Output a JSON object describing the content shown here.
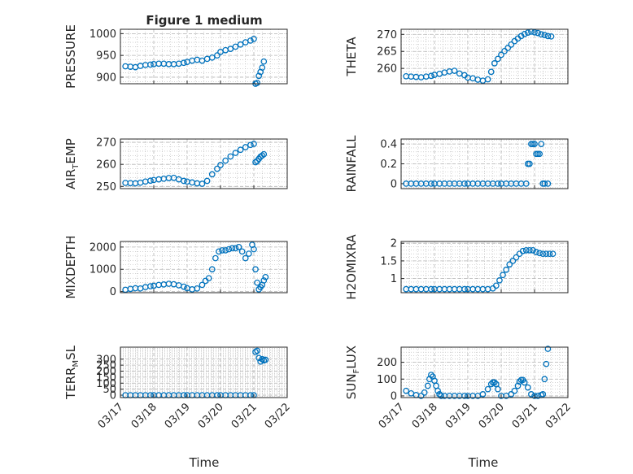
{
  "figure": {
    "title": "Figure 1 medium"
  },
  "colors": {
    "marker": "#0072BD",
    "axis": "#262626",
    "grid": "#b4b4b4"
  },
  "chart_data": [
    {
      "id": "pressure",
      "type": "scatter",
      "ylabel": "PRESSURE",
      "ylabel_sub": "",
      "ylabel_tail": "",
      "ylim": [
        885,
        1010
      ],
      "yticks": [
        900,
        950,
        1000
      ],
      "xlim": [
        "03/17",
        "03/22"
      ],
      "xticks": [
        "03/17",
        "03/18",
        "03/19",
        "03/20",
        "03/21",
        "03/22"
      ],
      "x_days": [
        0.15,
        0.3,
        0.45,
        0.6,
        0.75,
        0.9,
        1.0,
        1.15,
        1.3,
        1.45,
        1.6,
        1.75,
        1.9,
        2.0,
        2.15,
        2.3,
        2.45,
        2.6,
        2.75,
        2.9,
        3.0,
        3.15,
        3.3,
        3.45,
        3.6,
        3.75,
        3.9,
        4.0,
        4.05,
        4.1,
        4.15,
        4.2,
        4.25,
        4.3
      ],
      "y": [
        925,
        924,
        923,
        926,
        928,
        929,
        930,
        931,
        931,
        930,
        930,
        931,
        933,
        935,
        938,
        940,
        938,
        942,
        945,
        950,
        958,
        962,
        965,
        970,
        975,
        980,
        984,
        988,
        885,
        887,
        903,
        912,
        922,
        936
      ]
    },
    {
      "id": "theta",
      "type": "scatter",
      "ylabel": "THETA",
      "ylabel_sub": "",
      "ylabel_tail": "",
      "ylim": [
        255.5,
        271.5
      ],
      "yticks": [
        260,
        265,
        270
      ],
      "xlim": [
        "03/17",
        "03/22"
      ],
      "xticks": [
        "03/17",
        "03/18",
        "03/19",
        "03/20",
        "03/21",
        "03/22"
      ],
      "x_days": [
        0.15,
        0.3,
        0.45,
        0.6,
        0.75,
        0.9,
        1.0,
        1.15,
        1.3,
        1.45,
        1.6,
        1.75,
        1.9,
        2.0,
        2.15,
        2.3,
        2.45,
        2.6,
        2.7,
        2.8,
        2.9,
        3.0,
        3.1,
        3.2,
        3.3,
        3.4,
        3.5,
        3.6,
        3.7,
        3.8,
        3.9,
        4.0,
        4.1,
        4.2,
        4.3,
        4.4,
        4.5
      ],
      "y": [
        257.7,
        257.6,
        257.5,
        257.4,
        257.6,
        257.8,
        258.1,
        258.4,
        258.8,
        259.1,
        259.3,
        258.5,
        258.0,
        257.3,
        257.1,
        256.7,
        256.4,
        256.8,
        259.0,
        261.5,
        262.8,
        264.0,
        265.1,
        266.0,
        267.0,
        268.0,
        268.8,
        269.5,
        270.1,
        270.5,
        270.8,
        270.6,
        270.4,
        270.0,
        269.8,
        269.5,
        269.4
      ]
    },
    {
      "id": "airtemp",
      "type": "scatter",
      "ylabel": "AIR",
      "ylabel_sub": "T",
      "ylabel_tail": "EMP",
      "ylim": [
        249,
        271.5
      ],
      "yticks": [
        250,
        260,
        270
      ],
      "xlim": [
        "03/17",
        "03/22"
      ],
      "xticks": [
        "03/17",
        "03/18",
        "03/19",
        "03/20",
        "03/21",
        "03/22"
      ],
      "x_days": [
        0.15,
        0.3,
        0.45,
        0.6,
        0.75,
        0.9,
        1.0,
        1.15,
        1.3,
        1.45,
        1.6,
        1.75,
        1.9,
        2.0,
        2.15,
        2.3,
        2.45,
        2.6,
        2.75,
        2.9,
        3.0,
        3.15,
        3.3,
        3.45,
        3.6,
        3.75,
        3.9,
        4.0,
        4.05,
        4.1,
        4.15,
        4.2,
        4.25,
        4.3
      ],
      "y": [
        251.6,
        251.5,
        251.4,
        251.7,
        252.2,
        252.6,
        252.9,
        253.2,
        253.5,
        253.8,
        253.9,
        253.2,
        252.5,
        252.2,
        251.8,
        251.4,
        251.2,
        252.5,
        255.5,
        258.0,
        259.7,
        261.7,
        263.6,
        265.2,
        266.6,
        267.8,
        268.8,
        269.3,
        261.0,
        261.5,
        262.5,
        263.5,
        264.0,
        264.6
      ]
    },
    {
      "id": "rainfall",
      "type": "scatter",
      "ylabel": "RAINFALL",
      "ylabel_sub": "",
      "ylabel_tail": "",
      "ylim": [
        -0.05,
        0.45
      ],
      "yticks": [
        0,
        0.2,
        0.4
      ],
      "xlim": [
        "03/17",
        "03/22"
      ],
      "xticks": [
        "03/17",
        "03/18",
        "03/19",
        "03/20",
        "03/21",
        "03/22"
      ],
      "x_days": [
        0.15,
        0.3,
        0.45,
        0.6,
        0.75,
        0.9,
        1.0,
        1.15,
        1.3,
        1.45,
        1.6,
        1.75,
        1.9,
        2.0,
        2.15,
        2.3,
        2.45,
        2.6,
        2.75,
        2.9,
        3.0,
        3.15,
        3.3,
        3.45,
        3.6,
        3.75,
        3.8,
        3.85,
        3.9,
        3.95,
        4.0,
        4.05,
        4.1,
        4.15,
        4.2,
        4.25,
        4.3,
        4.4
      ],
      "y": [
        0,
        0,
        0,
        0,
        0,
        0,
        0,
        0,
        0,
        0,
        0,
        0,
        0,
        0,
        0,
        0,
        0,
        0,
        0,
        0,
        0,
        0,
        0,
        0,
        0,
        0,
        0.2,
        0.2,
        0.4,
        0.4,
        0.4,
        0.3,
        0.3,
        0.3,
        0.4,
        0,
        0,
        0
      ]
    },
    {
      "id": "mixdepth",
      "type": "scatter",
      "ylabel": "MIXDEPTH",
      "ylabel_sub": "",
      "ylabel_tail": "",
      "ylim": [
        -50,
        2250
      ],
      "yticks": [
        0,
        1000,
        2000
      ],
      "xlim": [
        "03/17",
        "03/22"
      ],
      "xticks": [
        "03/17",
        "03/18",
        "03/19",
        "03/20",
        "03/21",
        "03/22"
      ],
      "x_days": [
        0.15,
        0.3,
        0.45,
        0.6,
        0.75,
        0.9,
        1.0,
        1.15,
        1.3,
        1.45,
        1.6,
        1.75,
        1.9,
        2.0,
        2.15,
        2.3,
        2.45,
        2.55,
        2.65,
        2.75,
        2.85,
        2.95,
        3.05,
        3.15,
        3.25,
        3.35,
        3.45,
        3.55,
        3.65,
        3.75,
        3.85,
        3.95,
        4.0,
        4.05,
        4.1,
        4.15,
        4.2,
        4.25,
        4.3,
        4.35
      ],
      "y": [
        80,
        120,
        150,
        140,
        200,
        240,
        260,
        300,
        320,
        350,
        330,
        280,
        220,
        150,
        100,
        140,
        300,
        480,
        600,
        1000,
        1500,
        1800,
        1850,
        1850,
        1900,
        1950,
        1950,
        2000,
        1800,
        1500,
        1700,
        2100,
        1900,
        1000,
        400,
        100,
        200,
        300,
        500,
        650
      ]
    },
    {
      "id": "h2omixra",
      "type": "scatter",
      "ylabel": "H2OMIXRA",
      "ylabel_sub": "",
      "ylabel_tail": "",
      "ylim": [
        0.6,
        2.05
      ],
      "yticks": [
        1,
        1.5,
        2
      ],
      "xlim": [
        "03/17",
        "03/22"
      ],
      "xticks": [
        "03/17",
        "03/18",
        "03/19",
        "03/20",
        "03/21",
        "03/22"
      ],
      "x_days": [
        0.15,
        0.3,
        0.45,
        0.6,
        0.75,
        0.9,
        1.0,
        1.15,
        1.3,
        1.45,
        1.6,
        1.75,
        1.9,
        2.0,
        2.15,
        2.3,
        2.45,
        2.6,
        2.75,
        2.85,
        2.95,
        3.05,
        3.15,
        3.25,
        3.35,
        3.45,
        3.55,
        3.65,
        3.75,
        3.85,
        3.95,
        4.05,
        4.15,
        4.25,
        4.35,
        4.45,
        4.55
      ],
      "y": [
        0.7,
        0.7,
        0.7,
        0.7,
        0.7,
        0.7,
        0.7,
        0.7,
        0.7,
        0.7,
        0.7,
        0.7,
        0.7,
        0.7,
        0.7,
        0.7,
        0.7,
        0.7,
        0.72,
        0.8,
        0.95,
        1.1,
        1.25,
        1.4,
        1.5,
        1.6,
        1.7,
        1.78,
        1.8,
        1.8,
        1.8,
        1.75,
        1.72,
        1.7,
        1.7,
        1.7,
        1.7
      ]
    },
    {
      "id": "terrmsl",
      "type": "scatter",
      "ylabel": "TERR",
      "ylabel_sub": "M",
      "ylabel_tail": "SL",
      "ylim": [
        -20,
        400
      ],
      "yticks": [
        0,
        50,
        100,
        150,
        200,
        250,
        300
      ],
      "xlim": [
        "03/17",
        "03/22"
      ],
      "xticks": [
        "03/17",
        "03/18",
        "03/19",
        "03/20",
        "03/21",
        "03/22"
      ],
      "x_days": [
        0.15,
        0.3,
        0.45,
        0.6,
        0.75,
        0.9,
        1.0,
        1.15,
        1.3,
        1.45,
        1.6,
        1.75,
        1.9,
        2.0,
        2.15,
        2.3,
        2.45,
        2.6,
        2.75,
        2.9,
        3.0,
        3.15,
        3.3,
        3.45,
        3.6,
        3.75,
        3.9,
        4.0,
        4.05,
        4.1,
        4.15,
        4.2,
        4.25,
        4.3,
        4.35
      ],
      "y": [
        0,
        0,
        0,
        0,
        0,
        0,
        0,
        0,
        0,
        0,
        0,
        0,
        0,
        0,
        0,
        0,
        0,
        0,
        0,
        0,
        0,
        0,
        0,
        0,
        0,
        0,
        0,
        0,
        360,
        370,
        310,
        280,
        300,
        290,
        295
      ]
    },
    {
      "id": "sunflux",
      "type": "scatter",
      "ylabel": "SUN",
      "ylabel_sub": "F",
      "ylabel_tail": "LUX",
      "ylim": [
        -10,
        290
      ],
      "yticks": [
        0,
        100,
        200
      ],
      "xlim": [
        "03/17",
        "03/22"
      ],
      "xticks": [
        "03/17",
        "03/18",
        "03/19",
        "03/20",
        "03/21",
        "03/22"
      ],
      "x_days": [
        0.15,
        0.3,
        0.45,
        0.6,
        0.7,
        0.8,
        0.85,
        0.9,
        0.95,
        1.0,
        1.05,
        1.1,
        1.15,
        1.2,
        1.3,
        1.45,
        1.6,
        1.75,
        1.9,
        2.0,
        2.15,
        2.3,
        2.45,
        2.6,
        2.7,
        2.75,
        2.8,
        2.85,
        2.9,
        3.0,
        3.15,
        3.3,
        3.4,
        3.5,
        3.55,
        3.6,
        3.65,
        3.7,
        3.8,
        3.9,
        4.0,
        4.1,
        4.2,
        4.25,
        4.3,
        4.35,
        4.4
      ],
      "y": [
        30,
        15,
        5,
        0,
        20,
        60,
        100,
        125,
        115,
        90,
        60,
        30,
        10,
        0,
        0,
        0,
        0,
        0,
        0,
        0,
        0,
        0,
        10,
        40,
        70,
        80,
        80,
        70,
        40,
        0,
        0,
        10,
        30,
        60,
        85,
        95,
        95,
        80,
        50,
        10,
        0,
        0,
        5,
        10,
        100,
        190,
        280
      ]
    }
  ],
  "shared": {
    "xlabel": "Time"
  }
}
